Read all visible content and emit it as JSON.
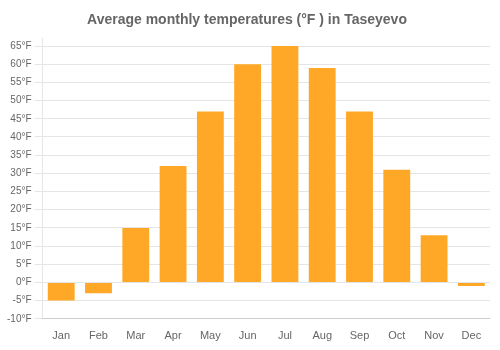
{
  "chart_data": {
    "type": "bar",
    "title": "Average monthly temperatures (°F ) in Taseyevo",
    "categories": [
      "Jan",
      "Feb",
      "Mar",
      "Apr",
      "May",
      "Jun",
      "Jul",
      "Aug",
      "Sep",
      "Oct",
      "Nov",
      "Dec"
    ],
    "values": [
      -5,
      -3,
      15,
      32,
      47,
      60,
      65,
      59,
      47,
      31,
      13,
      -1
    ],
    "color": "#FFA726",
    "ylim": [
      -10,
      67
    ],
    "yticks": [
      {
        "value": -10,
        "label": "-10°F"
      },
      {
        "value": -5,
        "label": "-5°F"
      },
      {
        "value": 0,
        "label": "0°F"
      },
      {
        "value": 5,
        "label": "5°F"
      },
      {
        "value": 10,
        "label": "10°F"
      },
      {
        "value": 15,
        "label": "15°F"
      },
      {
        "value": 20,
        "label": "20°F"
      },
      {
        "value": 25,
        "label": "25°F"
      },
      {
        "value": 30,
        "label": "30°F"
      },
      {
        "value": 35,
        "label": "35°F"
      },
      {
        "value": 40,
        "label": "40°F"
      },
      {
        "value": 45,
        "label": "45°F"
      },
      {
        "value": 50,
        "label": "50°F"
      },
      {
        "value": 55,
        "label": "55°F"
      },
      {
        "value": 60,
        "label": "60°F"
      },
      {
        "value": 65,
        "label": "65°F"
      }
    ],
    "grid": true
  }
}
